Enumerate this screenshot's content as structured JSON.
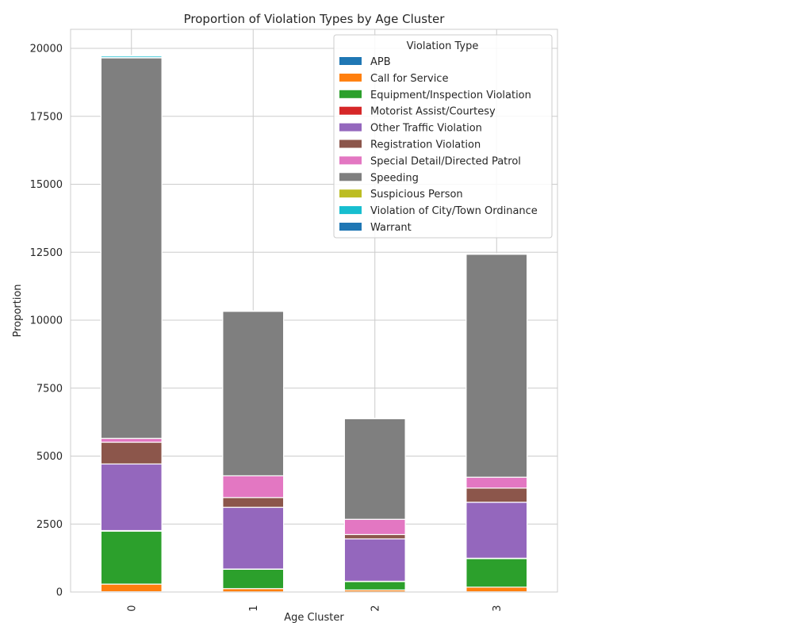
{
  "chart_data": {
    "type": "bar",
    "stacked": true,
    "title": "Proportion of Violation Types by Age Cluster",
    "xlabel": "Age Cluster",
    "ylabel": "Proportion",
    "categories": [
      "0",
      "1",
      "2",
      "3"
    ],
    "ylim": [
      0,
      20700
    ],
    "yticks": [
      0,
      2500,
      5000,
      7500,
      10000,
      12500,
      15000,
      17500,
      20000
    ],
    "grid": true,
    "legend": {
      "title": "Violation Type",
      "placement": "top-right"
    },
    "series": [
      {
        "name": "APB",
        "color": "#1f77b4",
        "values": [
          10,
          5,
          5,
          8
        ]
      },
      {
        "name": "Call for Service",
        "color": "#ff7f0e",
        "values": [
          280,
          120,
          70,
          170
        ]
      },
      {
        "name": "Equipment/Inspection Violation",
        "color": "#2ca02c",
        "values": [
          1950,
          710,
          310,
          1050
        ]
      },
      {
        "name": "Motorist Assist/Courtesy",
        "color": "#d62728",
        "values": [
          20,
          10,
          10,
          15
        ]
      },
      {
        "name": "Other Traffic Violation",
        "color": "#9467bd",
        "values": [
          2450,
          2270,
          1560,
          2060
        ]
      },
      {
        "name": "Registration Violation",
        "color": "#8c564b",
        "values": [
          800,
          360,
          160,
          520
        ]
      },
      {
        "name": "Special Detail/Directed Patrol",
        "color": "#e377c2",
        "values": [
          140,
          800,
          560,
          400
        ]
      },
      {
        "name": "Speeding",
        "color": "#7f7f7f",
        "values": [
          14000,
          6050,
          3700,
          8200
        ]
      },
      {
        "name": "Suspicious Person",
        "color": "#bcbd22",
        "values": [
          10,
          5,
          5,
          5
        ]
      },
      {
        "name": "Violation of City/Town Ordinance",
        "color": "#17becf",
        "values": [
          60,
          5,
          5,
          10
        ]
      },
      {
        "name": "Warrant",
        "color": "#1f77b4",
        "values": [
          20,
          5,
          5,
          10
        ]
      }
    ]
  }
}
